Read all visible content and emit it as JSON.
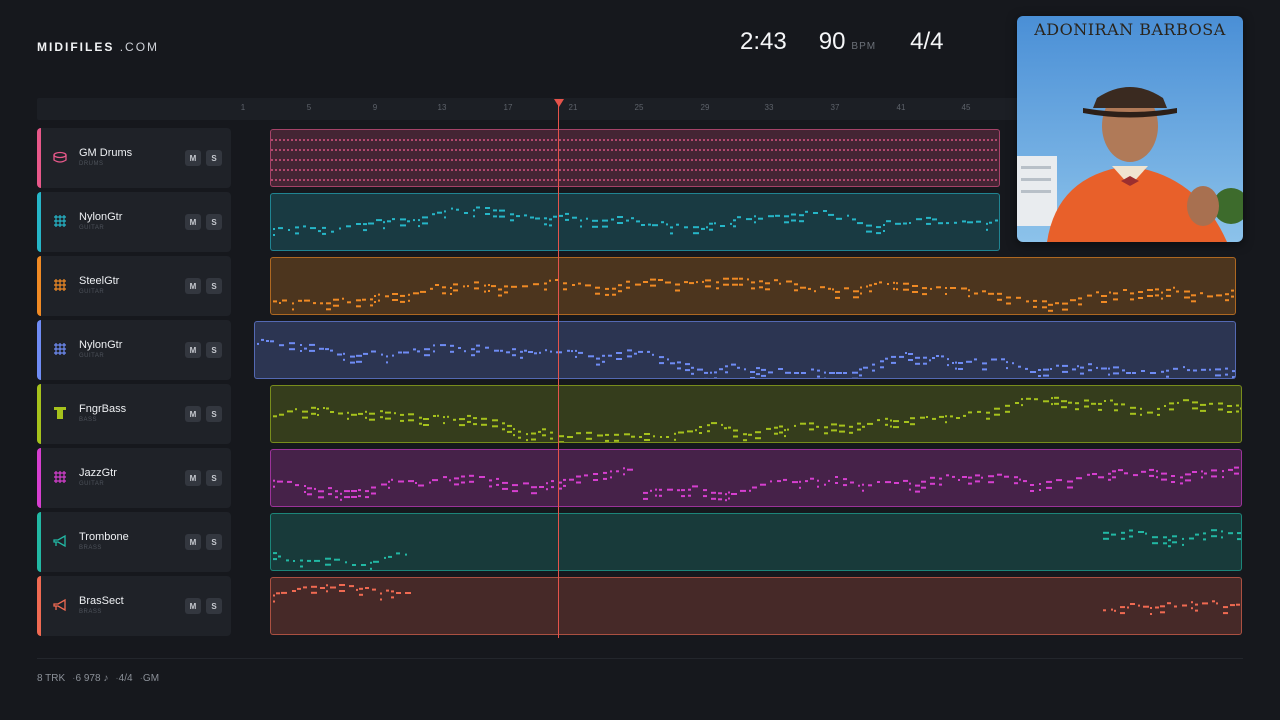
{
  "brand": {
    "name": "MIDIFILES",
    "suffix": ".COM"
  },
  "transport": {
    "time": "2:43",
    "bpm": "90",
    "bpm_unit": "BPM",
    "signature": "4/4"
  },
  "ruler": {
    "ticks": [
      "1",
      "5",
      "9",
      "13",
      "17",
      "21",
      "25",
      "29",
      "33",
      "37",
      "41",
      "45"
    ]
  },
  "tracks": [
    {
      "name": "GM Drums",
      "category": "DRUMS",
      "color": "#e8588a",
      "icon": "drum-icon",
      "mute": "M",
      "solo": "S"
    },
    {
      "name": "NylonGtr",
      "category": "GUITAR",
      "color": "#26b6c8",
      "icon": "guitar-grid-icon",
      "mute": "M",
      "solo": "S"
    },
    {
      "name": "SteelGtr",
      "category": "GUITAR",
      "color": "#f08a24",
      "icon": "guitar-grid-icon",
      "mute": "M",
      "solo": "S"
    },
    {
      "name": "NylonGtr",
      "category": "GUITAR",
      "color": "#6f8cf5",
      "icon": "guitar-grid-icon",
      "mute": "M",
      "solo": "S"
    },
    {
      "name": "FngrBass",
      "category": "BASS",
      "color": "#a6c21c",
      "icon": "bass-icon",
      "mute": "M",
      "solo": "S"
    },
    {
      "name": "JazzGtr",
      "category": "GUITAR",
      "color": "#d63fd0",
      "icon": "guitar-grid-icon",
      "mute": "M",
      "solo": "S"
    },
    {
      "name": "Trombone",
      "category": "BRASS",
      "color": "#22b8a4",
      "icon": "horn-icon",
      "mute": "M",
      "solo": "S"
    },
    {
      "name": "BrasSect",
      "category": "BRASS",
      "color": "#f06a52",
      "icon": "horn-icon",
      "mute": "M",
      "solo": "S"
    }
  ],
  "album": {
    "title": "ADONIRAN BARBOSA"
  },
  "footer": {
    "tracks": "8 TRK",
    "notes": "6 978 ♪",
    "signature": "4/4",
    "mode": "GM"
  }
}
